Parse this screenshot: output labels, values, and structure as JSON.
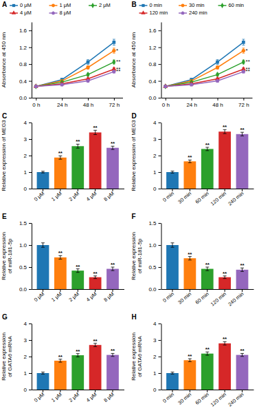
{
  "chart_data": [
    {
      "type": "line",
      "title": "A",
      "x": [
        0,
        24,
        48,
        72
      ],
      "xlim": [
        -4,
        80
      ],
      "xticks": [
        {
          "value": 0,
          "label": "0 h"
        },
        {
          "value": 24,
          "label": "24 h"
        },
        {
          "value": 48,
          "label": "48 h"
        },
        {
          "value": 72,
          "label": "72 h"
        }
      ],
      "ylabel": "Absorbance at 450 nm",
      "ylim": [
        0.0,
        1.8
      ],
      "yticks": [
        {
          "value": 0.0,
          "label": "0.0"
        },
        0.4,
        0.8,
        1.2,
        1.6
      ],
      "legend": "top",
      "series": [
        {
          "name": "0 μM",
          "marker": "square",
          "values": [
            0.27,
            0.43,
            0.85,
            1.32
          ],
          "errors": [
            0.015,
            0.035,
            0.055,
            0.07
          ]
        },
        {
          "name": "1 μM",
          "marker": "circle",
          "values": [
            0.27,
            0.4,
            0.72,
            1.12
          ],
          "errors": [
            0.015,
            0.025,
            0.04,
            0.06
          ]
        },
        {
          "name": "2 μM",
          "marker": "diamond",
          "values": [
            0.27,
            0.37,
            0.55,
            0.85
          ],
          "errors": [
            0.015,
            0.02,
            0.035,
            0.045
          ]
        },
        {
          "name": "4 μM",
          "marker": "triangle",
          "values": [
            0.27,
            0.33,
            0.45,
            0.68
          ],
          "errors": [
            0.015,
            0.015,
            0.025,
            0.035
          ]
        },
        {
          "name": "8 μM",
          "marker": "pentagon",
          "values": [
            0.27,
            0.31,
            0.4,
            0.62
          ],
          "errors": [
            0.015,
            0.015,
            0.025,
            0.03
          ]
        }
      ],
      "annotations": [
        {
          "text": "*",
          "x": 74,
          "y": 1.12
        },
        {
          "text": "**",
          "x": 74,
          "y": 0.85
        },
        {
          "text": "**",
          "x": 74,
          "y": 0.68
        },
        {
          "text": "**",
          "x": 74,
          "y": 0.62
        }
      ]
    },
    {
      "type": "line",
      "title": "B",
      "x": [
        0,
        24,
        48,
        72
      ],
      "xlim": [
        -4,
        80
      ],
      "xticks": [
        {
          "value": 0,
          "label": "0 h"
        },
        {
          "value": 24,
          "label": "24 h"
        },
        {
          "value": 48,
          "label": "48 h"
        },
        {
          "value": 72,
          "label": "72 h"
        }
      ],
      "ylabel": "Absorbance at 450 nm",
      "ylim": [
        0.0,
        1.8
      ],
      "yticks": [
        {
          "value": 0.0,
          "label": "0.0"
        },
        0.4,
        0.8,
        1.2,
        1.6
      ],
      "legend": "top",
      "series": [
        {
          "name": "0 min",
          "marker": "square",
          "values": [
            0.27,
            0.43,
            0.85,
            1.32
          ],
          "errors": [
            0.015,
            0.035,
            0.055,
            0.07
          ]
        },
        {
          "name": "30 min",
          "marker": "circle",
          "values": [
            0.27,
            0.4,
            0.72,
            1.12
          ],
          "errors": [
            0.015,
            0.025,
            0.04,
            0.06
          ]
        },
        {
          "name": "60 min",
          "marker": "diamond",
          "values": [
            0.27,
            0.37,
            0.55,
            0.85
          ],
          "errors": [
            0.015,
            0.02,
            0.035,
            0.045
          ]
        },
        {
          "name": "120 min",
          "marker": "triangle",
          "values": [
            0.27,
            0.33,
            0.45,
            0.68
          ],
          "errors": [
            0.015,
            0.015,
            0.025,
            0.035
          ]
        },
        {
          "name": "240 min",
          "marker": "pentagon",
          "values": [
            0.27,
            0.31,
            0.4,
            0.62
          ],
          "errors": [
            0.015,
            0.015,
            0.025,
            0.03
          ]
        }
      ],
      "annotations": [
        {
          "text": "*",
          "x": 74,
          "y": 1.12
        },
        {
          "text": "**",
          "x": 74,
          "y": 0.85
        },
        {
          "text": "**",
          "x": 74,
          "y": 0.68
        },
        {
          "text": "**",
          "x": 74,
          "y": 0.62
        }
      ]
    },
    {
      "type": "bar",
      "title": "C",
      "categories": [
        "0 μM",
        "1 μM",
        "2 μM",
        "4 μM",
        "8 μM"
      ],
      "values": [
        1.0,
        1.88,
        2.57,
        3.4,
        2.47
      ],
      "errors": [
        0.05,
        0.1,
        0.12,
        0.13,
        0.1
      ],
      "ylabel": "Relative expression of MEG3",
      "ylim": [
        0,
        4
      ],
      "yticks": [
        0,
        1,
        2,
        3,
        4
      ],
      "annotations": [
        {
          "text": "**",
          "x": "1 μM"
        },
        {
          "text": "**",
          "x": "2 μM"
        },
        {
          "text": "**",
          "x": "4 μM"
        },
        {
          "text": "**",
          "x": "8 μM"
        }
      ]
    },
    {
      "type": "bar",
      "title": "D",
      "categories": [
        "0 min",
        "30 min",
        "60 min",
        "120 min",
        "240 min"
      ],
      "values": [
        1.0,
        1.65,
        2.4,
        3.45,
        3.3
      ],
      "errors": [
        0.06,
        0.08,
        0.1,
        0.12,
        0.11
      ],
      "ylabel": "Relative expression of MEG3",
      "ylim": [
        0,
        4
      ],
      "yticks": [
        0,
        1,
        2,
        3,
        4
      ],
      "annotations": [
        {
          "text": "**",
          "x": "30 min"
        },
        {
          "text": "**",
          "x": "60 min"
        },
        {
          "text": "**",
          "x": "120 min"
        },
        {
          "text": "**",
          "x": "240 min"
        }
      ]
    },
    {
      "type": "bar",
      "title": "E",
      "categories": [
        "0 μM",
        "1 μM",
        "2 μM",
        "4 μM",
        "8 μM"
      ],
      "values": [
        1.0,
        0.72,
        0.42,
        0.27,
        0.46
      ],
      "errors": [
        0.05,
        0.04,
        0.04,
        0.03,
        0.04
      ],
      "ylabel": "Relative expression\nof miR-181-5p",
      "ylim": [
        0,
        1.5
      ],
      "yticks": [
        {
          "value": 0.0,
          "label": "0.0"
        },
        0.5,
        {
          "value": 1.0,
          "label": "1.0"
        },
        1.5
      ],
      "annotations": [
        {
          "text": "**",
          "x": "1 μM"
        },
        {
          "text": "**",
          "x": "2 μM"
        },
        {
          "text": "**",
          "x": "4 μM"
        },
        {
          "text": "**",
          "x": "8 μM"
        }
      ]
    },
    {
      "type": "bar",
      "title": "F",
      "categories": [
        "0 min",
        "30 min",
        "60 min",
        "120 min",
        "240 min"
      ],
      "values": [
        1.0,
        0.7,
        0.46,
        0.27,
        0.44
      ],
      "errors": [
        0.05,
        0.04,
        0.04,
        0.03,
        0.04
      ],
      "ylabel": "Relative expression\nof miR-181-5p",
      "ylim": [
        0,
        1.5
      ],
      "yticks": [
        {
          "value": 0.0,
          "label": "0.0"
        },
        0.5,
        {
          "value": 1.0,
          "label": "1.0"
        },
        1.5
      ],
      "annotations": [
        {
          "text": "**",
          "x": "30 min"
        },
        {
          "text": "**",
          "x": "60 min"
        },
        {
          "text": "**",
          "x": "120 min"
        },
        {
          "text": "**",
          "x": "240 min"
        }
      ]
    },
    {
      "type": "bar",
      "title": "G",
      "categories": [
        "0 μM",
        "1 μM",
        "2 μM",
        "4 μM",
        "8 μM"
      ],
      "values": [
        1.0,
        1.75,
        2.08,
        2.7,
        2.1
      ],
      "errors": [
        0.06,
        0.09,
        0.1,
        0.1,
        0.09
      ],
      "ylabel": "Relative expression\nof GATA6 mRNA",
      "ylim": [
        0,
        4
      ],
      "yticks": [
        0,
        1,
        2,
        3,
        4
      ],
      "annotations": [
        {
          "text": "**",
          "x": "1 μM"
        },
        {
          "text": "**",
          "x": "2 μM"
        },
        {
          "text": "**",
          "x": "4 μM"
        },
        {
          "text": "**",
          "x": "8 μM"
        }
      ]
    },
    {
      "type": "bar",
      "title": "H",
      "categories": [
        "0 min",
        "30 min",
        "60 min",
        "120 min",
        "240 min"
      ],
      "values": [
        1.0,
        1.78,
        2.18,
        2.8,
        2.1
      ],
      "errors": [
        0.06,
        0.09,
        0.1,
        0.1,
        0.09
      ],
      "ylabel": "Relative expression\nof GATA6 mRNA",
      "ylim": [
        0,
        4
      ],
      "yticks": [
        0,
        1,
        2,
        3,
        4
      ],
      "annotations": [
        {
          "text": "**",
          "x": "30 min"
        },
        {
          "text": "**",
          "x": "60 min"
        },
        {
          "text": "**",
          "x": "120 min"
        },
        {
          "text": "**",
          "x": "240 min"
        }
      ]
    }
  ]
}
